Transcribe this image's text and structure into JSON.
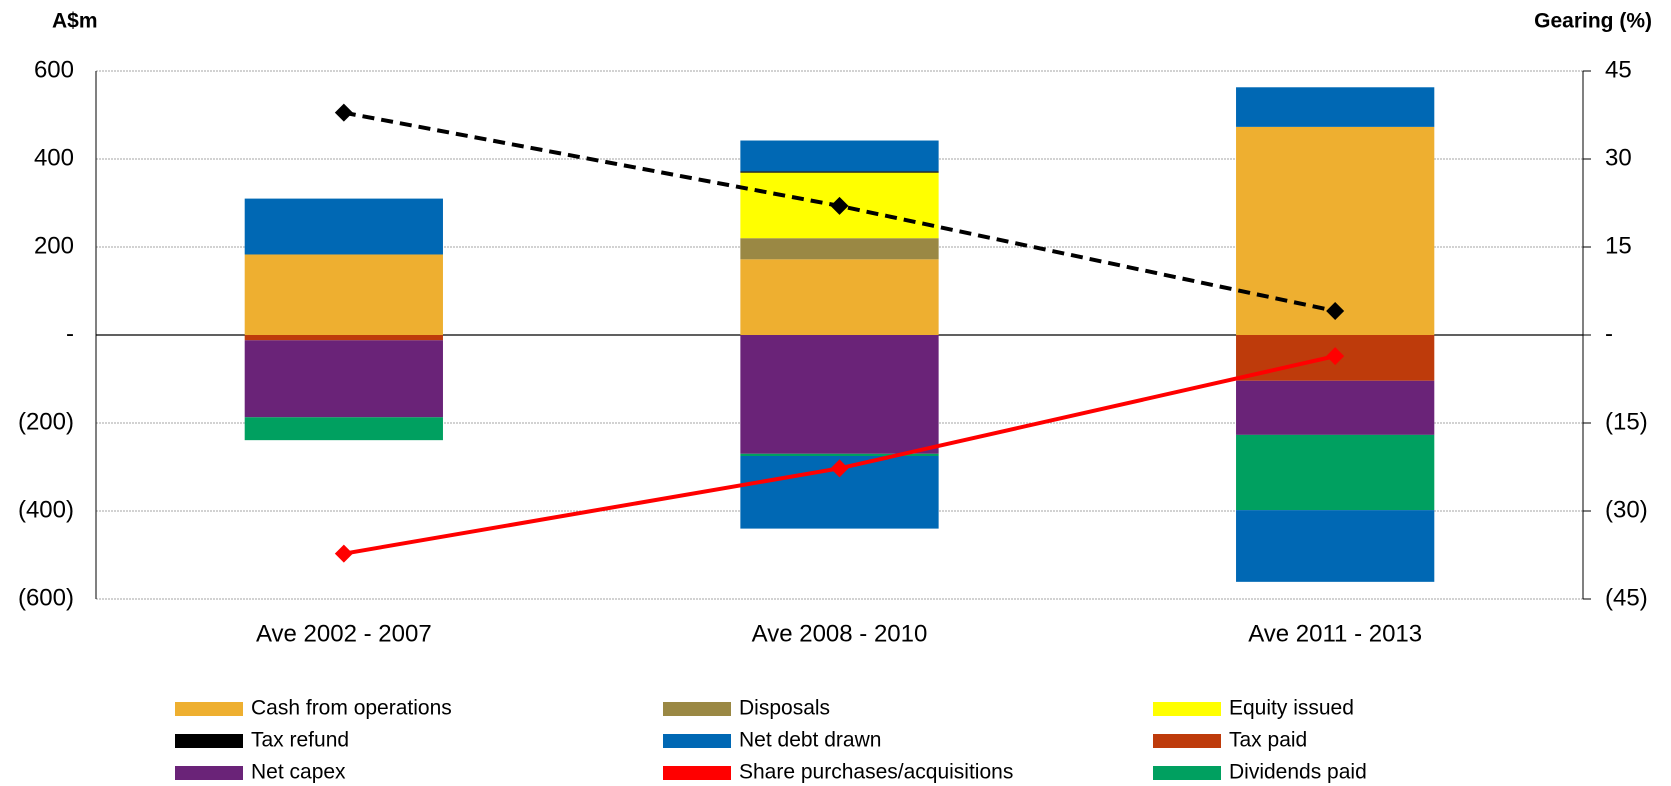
{
  "chart_data": {
    "type": "bar",
    "stacked": true,
    "y_label": "A$m",
    "y2_label": "Gearing (%)",
    "categories": [
      "Ave 2002 - 2007",
      "Ave 2008 - 2010",
      "Ave 2011 - 2013"
    ],
    "ylim": [
      -600,
      600
    ],
    "yticks": [
      {
        "value": -600,
        "label": "(600)"
      },
      {
        "value": -400,
        "label": "(400)"
      },
      {
        "value": -200,
        "label": "(200)"
      },
      {
        "value": 0,
        "label": "-"
      },
      200,
      400,
      600
    ],
    "y2lim": [
      -45,
      45
    ],
    "y2ticks": [
      {
        "value": -45,
        "label": "(45)"
      },
      {
        "value": -30,
        "label": "(30)"
      },
      {
        "value": -15,
        "label": "(15)"
      },
      {
        "value": 0,
        "label": "-"
      },
      15,
      30,
      45
    ],
    "grid": true,
    "series": [
      {
        "name": "Cash from operations",
        "color": "#eeaf30",
        "values": [
          183,
          172,
          473
        ]
      },
      {
        "name": "Disposals",
        "color": "#9a8844",
        "values": [
          0,
          48,
          0
        ]
      },
      {
        "name": "Equity issued",
        "color": "#ffff00",
        "values": [
          0,
          149,
          0
        ]
      },
      {
        "name": "Tax refund",
        "color": "#000000",
        "values": [
          0,
          3,
          0
        ]
      },
      {
        "name": "Net debt drawn",
        "color": "#0068b4",
        "values": [
          127,
          70,
          90
        ]
      },
      {
        "name": "Tax paid",
        "color": "#be3b0b",
        "values": [
          -12,
          0,
          -104
        ]
      },
      {
        "name": "Net capex",
        "color": "#6a2378",
        "values": [
          -175,
          -270,
          -123
        ]
      },
      {
        "name": "Share purchases/acquisitions",
        "color": "#ff0000",
        "mark": "line",
        "values": [
          -497,
          -303,
          -48
        ]
      },
      {
        "name": "Dividends paid",
        "color": "#00a060",
        "values": [
          -52,
          -5,
          -171
        ]
      },
      {
        "color": "#0068b4",
        "values": [
          0,
          -165,
          -163
        ]
      },
      {
        "color": "#000000",
        "mark": "dashed-line",
        "axis": "y2",
        "values": [
          37.9,
          22,
          4.1
        ]
      }
    ]
  }
}
